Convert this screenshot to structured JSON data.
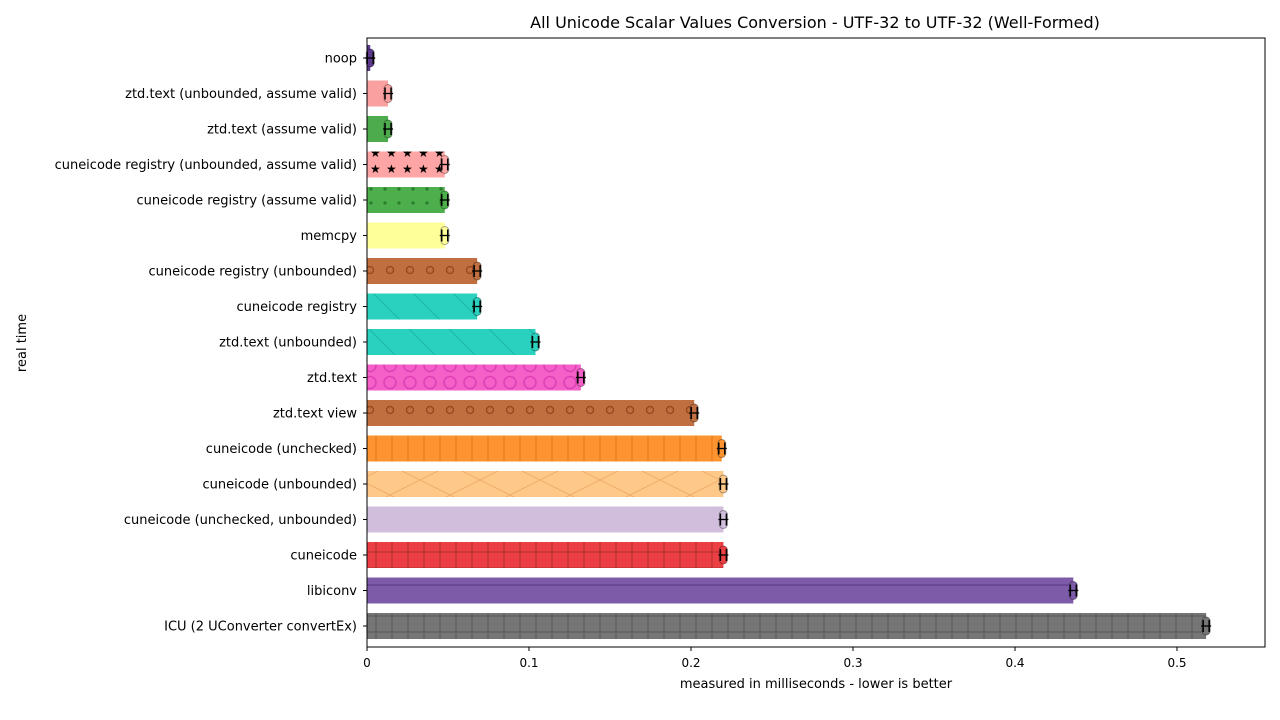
{
  "chart_data": {
    "type": "bar",
    "orientation": "horizontal",
    "title": "All Unicode Scalar Values Conversion - UTF-32 to UTF-32 (Well-Formed)",
    "xlabel": "measured in milliseconds - lower is better",
    "ylabel": "real time",
    "xlim": [
      0,
      0.5
    ],
    "xticks": [
      "0",
      "0.1",
      "0.2",
      "0.3",
      "0.4",
      "0.5"
    ],
    "grid": false,
    "categories": [
      "noop",
      "ztd.text (unbounded, assume valid)",
      "ztd.text (assume valid)",
      "cuneicode registry (unbounded, assume valid)",
      "cuneicode registry (assume valid)",
      "memcpy",
      "cuneicode registry (unbounded)",
      "cuneicode registry",
      "ztd.text (unbounded)",
      "ztd.text",
      "ztd.text view",
      "cuneicode (unchecked)",
      "cuneicode (unbounded)",
      "cuneicode (unchecked, unbounded)",
      "cuneicode",
      "libiconv",
      "ICU (2 UConverter convertEx)"
    ],
    "values": [
      0.002,
      0.013,
      0.013,
      0.048,
      0.048,
      0.048,
      0.068,
      0.068,
      0.104,
      0.132,
      0.202,
      0.219,
      0.22,
      0.22,
      0.22,
      0.436,
      0.518
    ],
    "colors": [
      "#5e3a8c",
      "#fba0a0",
      "#4daa4d",
      "#ffa5a5",
      "#4caf4c",
      "#ffff99",
      "#c07040",
      "#2ad1bf",
      "#2ad1bf",
      "#f55fc8",
      "#c07040",
      "#fd9430",
      "#fec888",
      "#d0bedc",
      "#ec3f43",
      "#7d5ba8",
      "#767676"
    ],
    "patterns": [
      "none",
      "none",
      "none",
      "stars",
      "dots",
      "none",
      "circles",
      "diag-back",
      "diag-back",
      "big-circles",
      "circles",
      "vlines",
      "cross-diag",
      "none",
      "grid",
      "hline",
      "grid"
    ]
  }
}
